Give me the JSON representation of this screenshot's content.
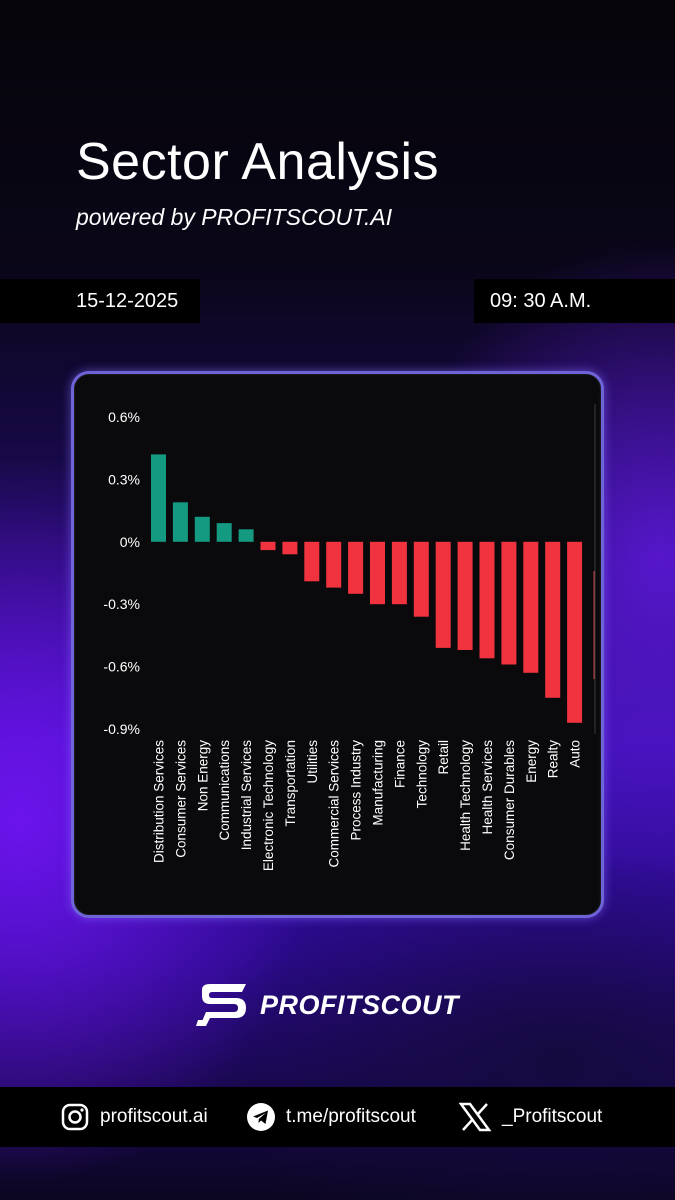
{
  "header": {
    "title": "Sector Analysis",
    "subtitle": "powered by PROFITSCOUT.AI"
  },
  "meta": {
    "date": "15-12-2025",
    "time": "09: 30 A.M."
  },
  "colors": {
    "positive": "#149a80",
    "negative": "#f0333f",
    "card_border": "#6f63d8"
  },
  "chart_data": {
    "type": "bar",
    "title": "",
    "xlabel": "",
    "ylabel": "",
    "ylim": [
      -0.9,
      0.6
    ],
    "yticks": [
      0.6,
      0.3,
      0,
      -0.3,
      -0.6,
      -0.9
    ],
    "ytick_labels": [
      "0.6%",
      "0.3%",
      "0%",
      "-0.3%",
      "-0.6%",
      "-0.9%"
    ],
    "grid": false,
    "categories": [
      "Distribution Services",
      "Consumer Services",
      "Non Energy",
      "Communications",
      "Industrial Services",
      "Electronic Technology",
      "Transportation",
      "Utilities",
      "Commercial Services",
      "Process Industry",
      "Manufacturing",
      "Finance",
      "Technology",
      "Retail",
      "Health Technology",
      "Health Services",
      "Consumer Durables",
      "Energy",
      "Realty",
      "Auto"
    ],
    "values": [
      0.42,
      0.19,
      0.12,
      0.09,
      0.06,
      -0.04,
      -0.06,
      -0.19,
      -0.22,
      -0.25,
      -0.3,
      -0.3,
      -0.36,
      -0.51,
      -0.52,
      -0.56,
      -0.59,
      -0.63,
      -0.75,
      -0.87
    ]
  },
  "brand": {
    "name": "PROFITSCOUT"
  },
  "social": {
    "instagram": "profitscout.ai",
    "telegram": "t.me/profitscout",
    "x": "_Profitscout"
  }
}
